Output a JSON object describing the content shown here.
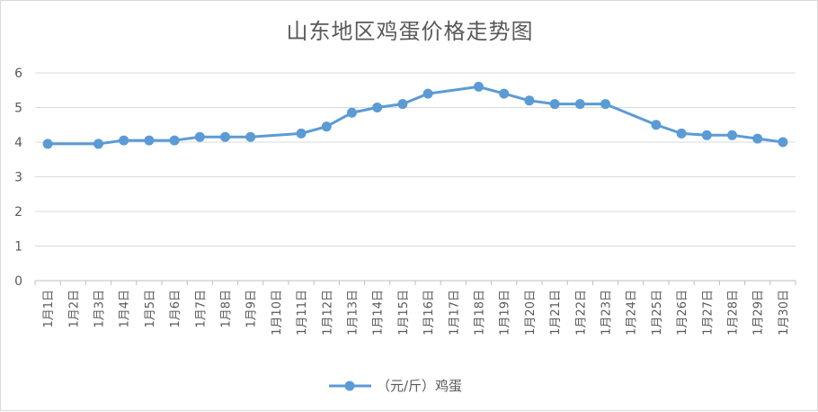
{
  "chart_data": {
    "type": "line",
    "title": "山东地区鸡蛋价格走势图",
    "categories": [
      "1月1日",
      "1月2日",
      "1月3日",
      "1月4日",
      "1月5日",
      "1月6日",
      "1月7日",
      "1月8日",
      "1月9日",
      "1月10日",
      "1月11日",
      "1月12日",
      "1月13日",
      "1月14日",
      "1月15日",
      "1月16日",
      "1月17日",
      "1月18日",
      "1月19日",
      "1月20日",
      "1月21日",
      "1月22日",
      "1月23日",
      "1月24日",
      "1月25日",
      "1月26日",
      "1月27日",
      "1月28日",
      "1月29日",
      "1月30日"
    ],
    "series": [
      {
        "name": "（元/斤）鸡蛋",
        "color": "#5b9bd5",
        "values": [
          3.95,
          null,
          3.95,
          4.05,
          4.05,
          4.05,
          4.15,
          4.15,
          4.15,
          null,
          4.25,
          4.45,
          4.85,
          5.0,
          5.1,
          5.4,
          null,
          5.6,
          5.4,
          5.2,
          5.1,
          5.1,
          5.1,
          null,
          4.5,
          4.25,
          4.2,
          4.2,
          4.1,
          4.0
        ]
      }
    ],
    "ylim": [
      0,
      6
    ],
    "yticks": [
      0,
      1,
      2,
      3,
      4,
      5,
      6
    ],
    "grid": true,
    "legend": "bottom"
  }
}
